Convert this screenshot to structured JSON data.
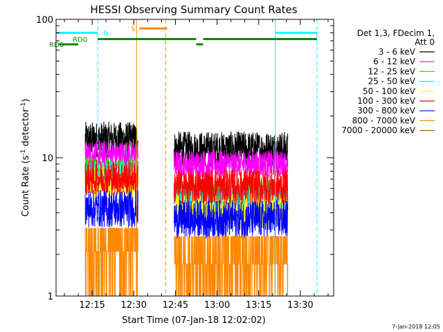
{
  "chart_data": {
    "type": "line",
    "title": "HESSI Observing Summary Count Rates",
    "xlabel": "Start Time (07-Jan-18 12:02:02)",
    "ylabel_main": "Count Rate (s",
    "ylabel_sup1": "-1",
    "ylabel_mid": " detector",
    "ylabel_sup2": "-1",
    "ylabel_end": ")",
    "y_scale": "log",
    "xlim_minutes": [
      0,
      100
    ],
    "ylim": [
      1,
      100
    ],
    "x_ticks": [
      {
        "m": 13,
        "label": "12:15"
      },
      {
        "m": 28,
        "label": "12:30"
      },
      {
        "m": 43,
        "label": "12:45"
      },
      {
        "m": 58,
        "label": "13:00"
      },
      {
        "m": 73,
        "label": "13:15"
      },
      {
        "m": 88,
        "label": "13:30"
      }
    ],
    "y_ticks": [
      {
        "v": 1,
        "label": "1"
      },
      {
        "v": 10,
        "label": "10"
      },
      {
        "v": 100,
        "label": "100"
      }
    ],
    "legend_header": [
      "Det 1,3, FDecim 1,",
      "Att 0"
    ],
    "legend_placement": "right",
    "series": [
      {
        "name": "3 - 6 keV",
        "color": "#000000",
        "seg1": 13.5,
        "seg2": 11.5,
        "amp": 0.13
      },
      {
        "name": "6 - 12 keV",
        "color": "#ff00ff",
        "seg1": 10.5,
        "seg2": 9.0,
        "amp": 0.1
      },
      {
        "name": "12 - 25 keV",
        "color": "#00ff00",
        "seg1": 8.0,
        "seg2": 5.5,
        "amp": 0.1
      },
      {
        "name": "25 - 50 keV",
        "color": "#00ffff",
        "seg1": 7.5,
        "seg2": 5.2,
        "amp": 0.1
      },
      {
        "name": "50 - 100 keV",
        "color": "#ffff00",
        "seg1": 6.5,
        "seg2": 4.2,
        "amp": 0.12
      },
      {
        "name": "100 - 300 keV",
        "color": "#ff0000",
        "seg1": 7.2,
        "seg2": 6.2,
        "amp": 0.13
      },
      {
        "name": "300 - 800 keV",
        "color": "#0000ff",
        "seg1": 4.3,
        "seg2": 3.6,
        "amp": 0.14
      },
      {
        "name": "800 - 7000 keV",
        "color": "#ff8800",
        "seg1": 2.1,
        "seg2": 1.7,
        "amp": 0.12
      },
      {
        "name": "7000 - 20000 keV",
        "color": "#aa6600",
        "seg1": 1.0,
        "seg2": 1.0,
        "amp": 0.0
      }
    ],
    "segments": [
      {
        "start": 10.5,
        "end": 29.5
      },
      {
        "start": 42.5,
        "end": 83.5
      }
    ],
    "vlines": [
      {
        "m": 0,
        "color": "#00ffff",
        "dash": false
      },
      {
        "m": 15,
        "color": "#00ffff",
        "dash": true
      },
      {
        "m": 29,
        "color": "#ff8800",
        "dash": false
      },
      {
        "m": 39.5,
        "color": "#ff8800",
        "dash": true
      },
      {
        "m": 79,
        "color": "#00ffff",
        "dash": false
      },
      {
        "m": 94,
        "color": "#00ffff",
        "dash": true
      }
    ],
    "flag_bars": [
      {
        "label": "N",
        "color": "#00ffff",
        "y": 80,
        "ranges": [
          [
            0,
            15
          ],
          [
            79,
            94
          ]
        ],
        "label_at": 17
      },
      {
        "label": "S",
        "color": "#ff8800",
        "y": 86,
        "ranges": [
          [
            30,
            40
          ]
        ],
        "label_at": 27
      },
      {
        "label": "RD0",
        "color": "#008800",
        "y": 72,
        "ranges": [
          [
            15,
            50.5
          ],
          [
            53,
            94
          ]
        ],
        "label_at": 6
      },
      {
        "label": "RD6",
        "color": "#008800",
        "y": 66,
        "ranges": [
          [
            1,
            8
          ],
          [
            50.5,
            53
          ]
        ],
        "label_at": -2.5
      }
    ],
    "footer_date": "7-Jan-2018 12:05"
  }
}
